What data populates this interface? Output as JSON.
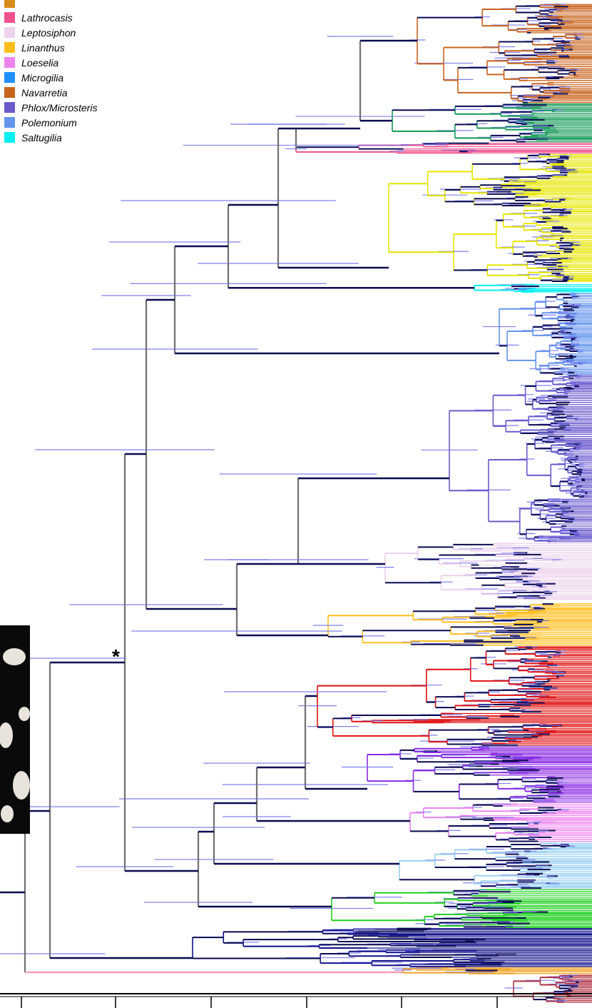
{
  "legend": [
    {
      "name": "Lathrocasis",
      "color": "#f0508c"
    },
    {
      "name": "Leptosiphon",
      "color": "#ecd2ec"
    },
    {
      "name": "Linanthus",
      "color": "#ffbe1e"
    },
    {
      "name": "Loeselia",
      "color": "#ee82ee"
    },
    {
      "name": "Microgilia",
      "color": "#1e90ff"
    },
    {
      "name": "Navarretia",
      "color": "#c8641e"
    },
    {
      "name": "Phlox/Microsteris",
      "color": "#6a5acd"
    },
    {
      "name": "Polemonium",
      "color": "#6495ed"
    },
    {
      "name": "Saltugilia",
      "color": "#00f0f0"
    }
  ],
  "marker": "*"
}
